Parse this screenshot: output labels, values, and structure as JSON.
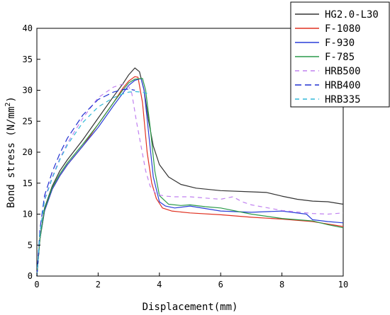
{
  "chart_data": {
    "type": "line",
    "xlabel": "Displacement(mm)",
    "ylabel_main": "Bond stress (N/mm",
    "ylabel_sup": "2",
    "ylabel_close": ")",
    "xlim": [
      0,
      10
    ],
    "ylim": [
      0,
      40
    ],
    "x_ticks": [
      0,
      2,
      4,
      6,
      8,
      10
    ],
    "y_ticks": [
      0,
      5,
      10,
      15,
      20,
      25,
      30,
      35,
      40
    ],
    "grid": false,
    "legend_position": "top-right",
    "series": [
      {
        "name": "HG2.0-L30",
        "color": "#333333",
        "dash": "solid",
        "x": [
          0,
          0.1,
          0.25,
          0.5,
          0.75,
          1.0,
          1.5,
          2.0,
          2.5,
          2.8,
          3.0,
          3.2,
          3.35,
          3.5,
          3.65,
          3.8,
          4.0,
          4.3,
          4.7,
          5.2,
          6.0,
          7.0,
          7.5,
          8.0,
          8.5,
          9.0,
          9.5,
          10.0
        ],
        "y": [
          0,
          6,
          11,
          14.5,
          17,
          18.8,
          22,
          25.5,
          29,
          31,
          32.5,
          33.6,
          33,
          30,
          25,
          21,
          18,
          16,
          14.8,
          14.2,
          13.8,
          13.6,
          13.5,
          12.9,
          12.4,
          12.1,
          12.0,
          11.6
        ]
      },
      {
        "name": "F-1080",
        "color": "#e03020",
        "dash": "solid",
        "x": [
          0,
          0.1,
          0.25,
          0.5,
          0.75,
          1.0,
          1.5,
          2.0,
          2.5,
          2.8,
          3.0,
          3.2,
          3.3,
          3.45,
          3.6,
          3.75,
          3.9,
          4.1,
          4.4,
          5.0,
          6.0,
          7.0,
          8.0,
          9.0,
          9.5,
          10.0
        ],
        "y": [
          0,
          6,
          10.5,
          14,
          16.2,
          18,
          21,
          24.5,
          28,
          30.3,
          31.5,
          32.2,
          32.1,
          28,
          20,
          15,
          12.5,
          11,
          10.5,
          10.2,
          9.9,
          9.5,
          9.2,
          8.8,
          8.4,
          8.0
        ]
      },
      {
        "name": "F-930",
        "color": "#2a3ed8",
        "dash": "solid",
        "x": [
          0,
          0.1,
          0.25,
          0.5,
          0.75,
          1.0,
          1.5,
          2.0,
          2.5,
          2.8,
          3.0,
          3.2,
          3.4,
          3.5,
          3.65,
          3.8,
          4.0,
          4.2,
          4.5,
          5.0,
          6.0,
          7.0,
          8.0,
          8.8,
          9.0,
          9.5,
          10.0
        ],
        "y": [
          0,
          6,
          10.5,
          14,
          16.2,
          18,
          21,
          24,
          27.5,
          29.5,
          30.8,
          31.6,
          31.9,
          30,
          23,
          16,
          12,
          11.3,
          11.0,
          11.3,
          10.5,
          10.3,
          10.5,
          10.0,
          9.1,
          8.8,
          8.6
        ]
      },
      {
        "name": "F-785",
        "color": "#2a9a4a",
        "dash": "solid",
        "x": [
          0,
          0.1,
          0.25,
          0.5,
          0.75,
          1.0,
          1.5,
          2.0,
          2.5,
          2.8,
          3.0,
          3.2,
          3.45,
          3.55,
          3.7,
          3.85,
          4.0,
          4.3,
          4.7,
          5.0,
          5.5,
          6.0,
          7.0,
          8.0,
          9.0,
          9.5,
          10.0
        ],
        "y": [
          0,
          6,
          10.8,
          14.3,
          16.5,
          18.3,
          21.3,
          24.5,
          28,
          30,
          31.2,
          31.8,
          31.9,
          30,
          24,
          17,
          13,
          11.6,
          11.4,
          11.5,
          11.2,
          11,
          10,
          9.3,
          8.9,
          8.3,
          7.8
        ]
      },
      {
        "name": "HRB500",
        "color": "#c080f0",
        "dash": "6,5",
        "x": [
          0,
          0.1,
          0.25,
          0.5,
          0.75,
          1.0,
          1.5,
          2.0,
          2.5,
          2.8,
          3.0,
          3.1,
          3.25,
          3.4,
          3.55,
          3.7,
          3.9,
          4.2,
          4.5,
          5.0,
          5.5,
          6.0,
          6.4,
          6.7,
          7.0,
          8.0,
          9.0,
          9.5,
          10.0
        ],
        "y": [
          0,
          7,
          12.5,
          16,
          19,
          21.5,
          25.5,
          28.8,
          30.5,
          31.0,
          30.6,
          29.5,
          25,
          21,
          17,
          14.5,
          13.2,
          12.9,
          12.8,
          12.8,
          12.6,
          12.4,
          12.8,
          12.0,
          11.5,
          10.6,
          10.1,
          10.0,
          10.2
        ]
      },
      {
        "name": "HRB400",
        "color": "#2030d0",
        "dash": "9,5",
        "x": [
          0,
          0.1,
          0.25,
          0.5,
          0.75,
          1.0,
          1.5,
          2.0,
          2.5,
          2.8,
          3.0,
          3.2
        ],
        "y": [
          0,
          7.5,
          13,
          16.8,
          19.8,
          22.3,
          26,
          28.5,
          29.7,
          30.1,
          30.2,
          30.0
        ]
      },
      {
        "name": "HRB335",
        "color": "#30b8d8",
        "dash": "6,5",
        "x": [
          0,
          0.1,
          0.25,
          0.5,
          0.75,
          1.0,
          1.5,
          2.0,
          2.5,
          2.8,
          3.0,
          3.2,
          3.4,
          3.6
        ],
        "y": [
          0,
          7,
          12.2,
          15.8,
          18.8,
          21.2,
          24.8,
          27.3,
          28.8,
          29.4,
          29.7,
          29.8,
          29.7,
          29.5
        ]
      }
    ]
  }
}
